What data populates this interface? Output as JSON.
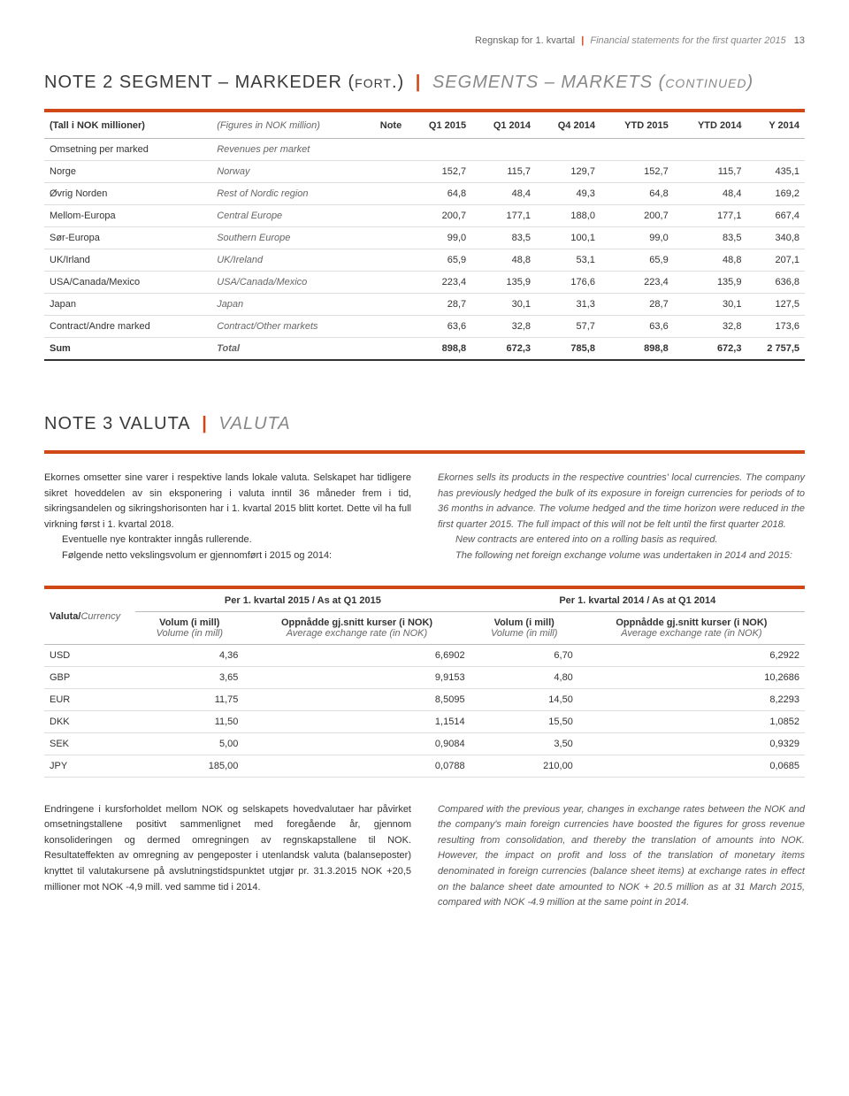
{
  "header": {
    "left": "Regnskap for 1. kvartal",
    "right_italic": "Financial statements for the first quarter 2015",
    "page": "13"
  },
  "note2": {
    "title_prefix": "NOTE 2",
    "title_no": "SEGMENT – MARKEDER (fort.)",
    "title_en": "SEGMENTS – MARKETS (continued)",
    "head": {
      "col1_no": "(Tall i NOK millioner)",
      "col1_en": "(Figures in NOK million)",
      "note": "Note",
      "c1": "Q1 2015",
      "c2": "Q1 2014",
      "c3": "Q4 2014",
      "c4": "YTD 2015",
      "c5": "YTD 2014",
      "c6": "Y 2014"
    },
    "rows": [
      {
        "no": "Omsetning per marked",
        "en": "Revenues per market",
        "v": [
          "",
          "",
          "",
          "",
          "",
          ""
        ]
      },
      {
        "no": "Norge",
        "en": "Norway",
        "v": [
          "152,7",
          "115,7",
          "129,7",
          "152,7",
          "115,7",
          "435,1"
        ]
      },
      {
        "no": "Øvrig Norden",
        "en": "Rest of Nordic region",
        "v": [
          "64,8",
          "48,4",
          "49,3",
          "64,8",
          "48,4",
          "169,2"
        ]
      },
      {
        "no": "Mellom-Europa",
        "en": "Central Europe",
        "v": [
          "200,7",
          "177,1",
          "188,0",
          "200,7",
          "177,1",
          "667,4"
        ]
      },
      {
        "no": "Sør-Europa",
        "en": "Southern Europe",
        "v": [
          "99,0",
          "83,5",
          "100,1",
          "99,0",
          "83,5",
          "340,8"
        ]
      },
      {
        "no": "UK/Irland",
        "en": "UK/Ireland",
        "v": [
          "65,9",
          "48,8",
          "53,1",
          "65,9",
          "48,8",
          "207,1"
        ]
      },
      {
        "no": "USA/Canada/Mexico",
        "en": "USA/Canada/Mexico",
        "v": [
          "223,4",
          "135,9",
          "176,6",
          "223,4",
          "135,9",
          "636,8"
        ]
      },
      {
        "no": "Japan",
        "en": "Japan",
        "v": [
          "28,7",
          "30,1",
          "31,3",
          "28,7",
          "30,1",
          "127,5"
        ]
      },
      {
        "no": "Contract/Andre marked",
        "en": "Contract/Other markets",
        "v": [
          "63,6",
          "32,8",
          "57,7",
          "63,6",
          "32,8",
          "173,6"
        ]
      }
    ],
    "total": {
      "no": "Sum",
      "en": "Total",
      "v": [
        "898,8",
        "672,3",
        "785,8",
        "898,8",
        "672,3",
        "2 757,5"
      ]
    }
  },
  "note3": {
    "title_prefix": "NOTE 3",
    "title_no": "VALUTA",
    "title_en": "VALUTA",
    "para_no": [
      "Ekornes omsetter sine varer i respektive lands lokale valuta. Selskapet har tidligere sikret hoveddelen av sin eksponering i valuta inntil 36 måneder frem i tid, sikringsandelen og sikringshorisonten har i 1. kvartal 2015 blitt kortet. Dette vil ha full virkning først i 1. kvartal 2018.",
      "Eventuelle nye kontrakter inngås rullerende.",
      "Følgende netto vekslingsvolum er gjennomført i 2015 og 2014:"
    ],
    "para_en": [
      "Ekornes sells its products in the respective countries' local currencies. The company has previously hedged the bulk of its exposure in foreign currencies for periods of to 36 months in advance. The volume hedged and the time horizon were reduced in the first quarter 2015. The full impact of this will not be felt until the first quarter 2018.",
      "New contracts are entered into on a rolling basis as required.",
      "The following net foreign exchange volume was undertaken in 2014 and 2015:"
    ],
    "table": {
      "group1": "Per 1. kvartal 2015 / As at Q1 2015",
      "group2": "Per 1. kvartal 2014 / As at Q1 2014",
      "col_label_no": "Valuta/",
      "col_label_en": "Currency",
      "vol_no": "Volum (i mill)",
      "vol_en": "Volume (in mill)",
      "rate_no": "Oppnådde gj.snitt kurser (i NOK)",
      "rate_en": "Average exchange rate (in NOK)",
      "rows": [
        {
          "c": "USD",
          "v": [
            "4,36",
            "6,6902",
            "6,70",
            "6,2922"
          ]
        },
        {
          "c": "GBP",
          "v": [
            "3,65",
            "9,9153",
            "4,80",
            "10,2686"
          ]
        },
        {
          "c": "EUR",
          "v": [
            "11,75",
            "8,5095",
            "14,50",
            "8,2293"
          ]
        },
        {
          "c": "DKK",
          "v": [
            "11,50",
            "1,1514",
            "15,50",
            "1,0852"
          ]
        },
        {
          "c": "SEK",
          "v": [
            "5,00",
            "0,9084",
            "3,50",
            "0,9329"
          ]
        },
        {
          "c": "JPY",
          "v": [
            "185,00",
            "0,0788",
            "210,00",
            "0,0685"
          ]
        }
      ]
    },
    "footer_no": "Endringene i kursforholdet mellom NOK og selskapets hovedvalutaer har påvirket omsetningstallene positivt sammenlignet med foregående år, gjennom konsolideringen og dermed omregningen av regnskapstallene til NOK. Resultateffekten av omregning av pengeposter i utenlandsk valuta (balanseposter) knyttet til valutakursene på avslutningstidspunktet utgjør pr. 31.3.2015 NOK +20,5 millioner mot NOK -4,9 mill. ved samme tid i 2014.",
    "footer_en": "Compared with the previous year, changes in exchange rates between the NOK and the company's main foreign currencies have boosted the figures for gross revenue resulting from consolidation, and thereby the translation of amounts into NOK. However, the impact on profit and loss of the translation of monetary items denominated in foreign currencies (balance sheet items) at exchange rates in effect on the balance sheet date amounted to NOK + 20.5 million as at 31 March 2015, compared with NOK -4.9 million at the same point in 2014."
  }
}
